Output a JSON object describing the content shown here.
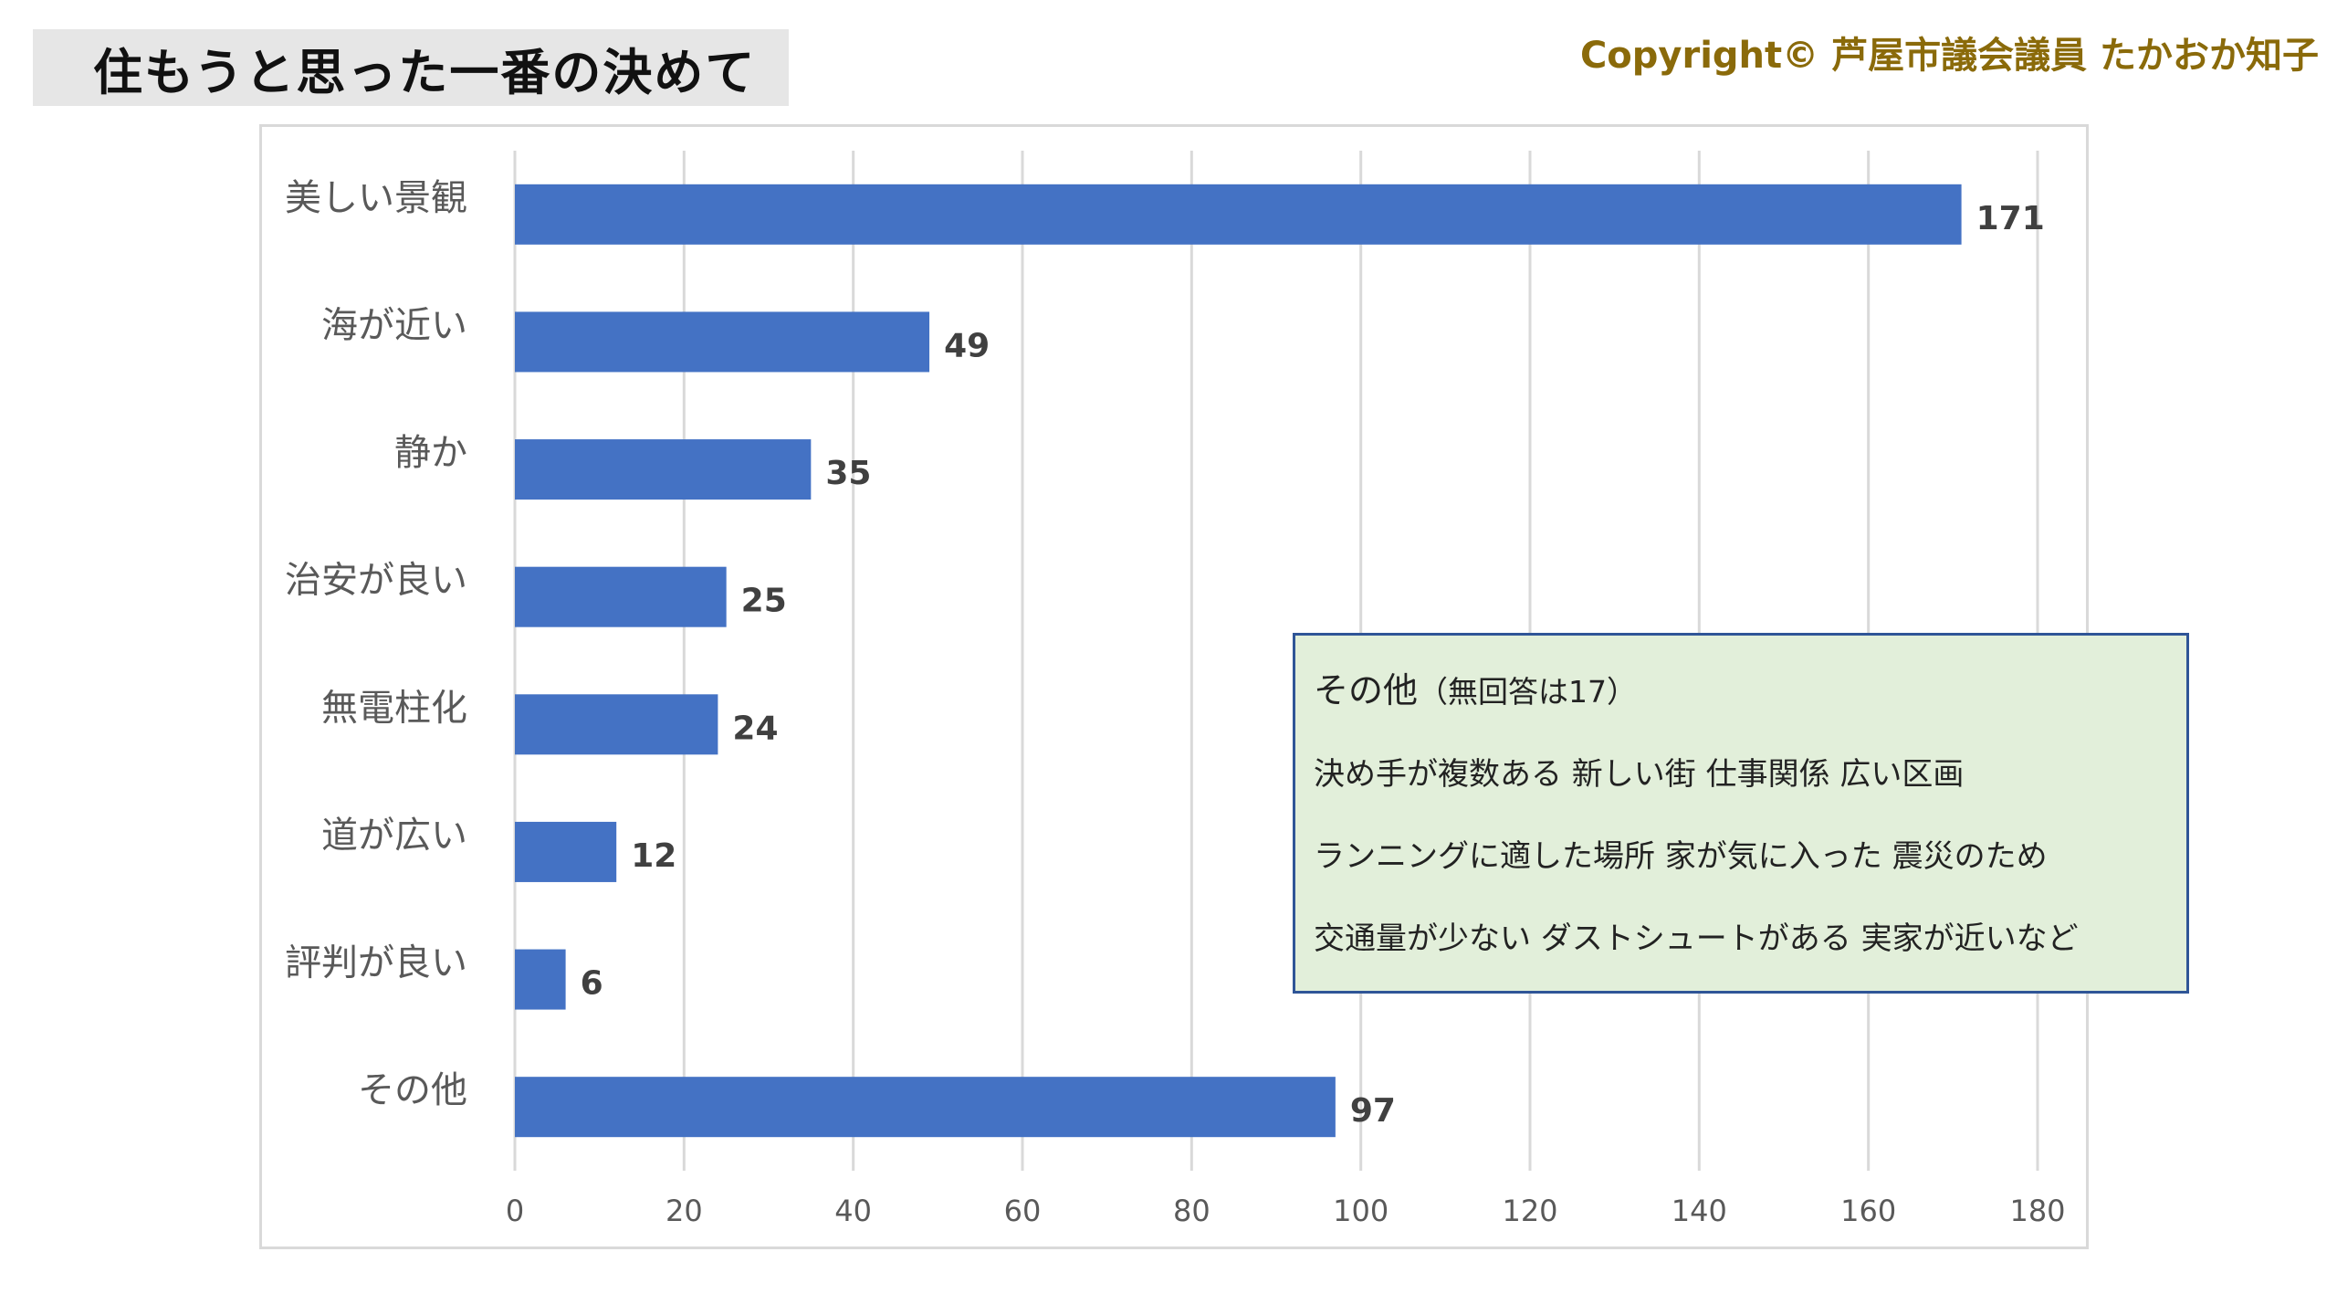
{
  "header": {
    "title": "住もうと思った一番の決めて",
    "copyright": "Copyright© 芦屋市議会議員 たかおか知子"
  },
  "colors": {
    "bar": "#4472c4",
    "grid": "#d9d9d9",
    "note_bg": "#e2efda",
    "note_border": "#2f5597",
    "copyright": "#8a6a0a"
  },
  "note": {
    "title_main": "その他",
    "title_sub": "（無回答は17）",
    "lines": [
      "決め手が複数ある 新しい街 仕事関係 広い区画",
      "ランニングに適した場所  家が気に入った 震災のため",
      "交通量が少ない ダストシュートがある 実家が近いなど"
    ]
  },
  "chart_data": {
    "type": "bar",
    "orientation": "horizontal",
    "categories": [
      "美しい景観",
      "海が近い",
      "静か",
      "治安が良い",
      "無電柱化",
      "道が広い",
      "評判が良い",
      "その他"
    ],
    "values": [
      171,
      49,
      35,
      25,
      24,
      12,
      6,
      97
    ],
    "xlim": [
      0,
      180
    ],
    "xticks": [
      0,
      20,
      40,
      60,
      80,
      100,
      120,
      140,
      160,
      180
    ],
    "grid": "vertical",
    "data_labels": true
  }
}
